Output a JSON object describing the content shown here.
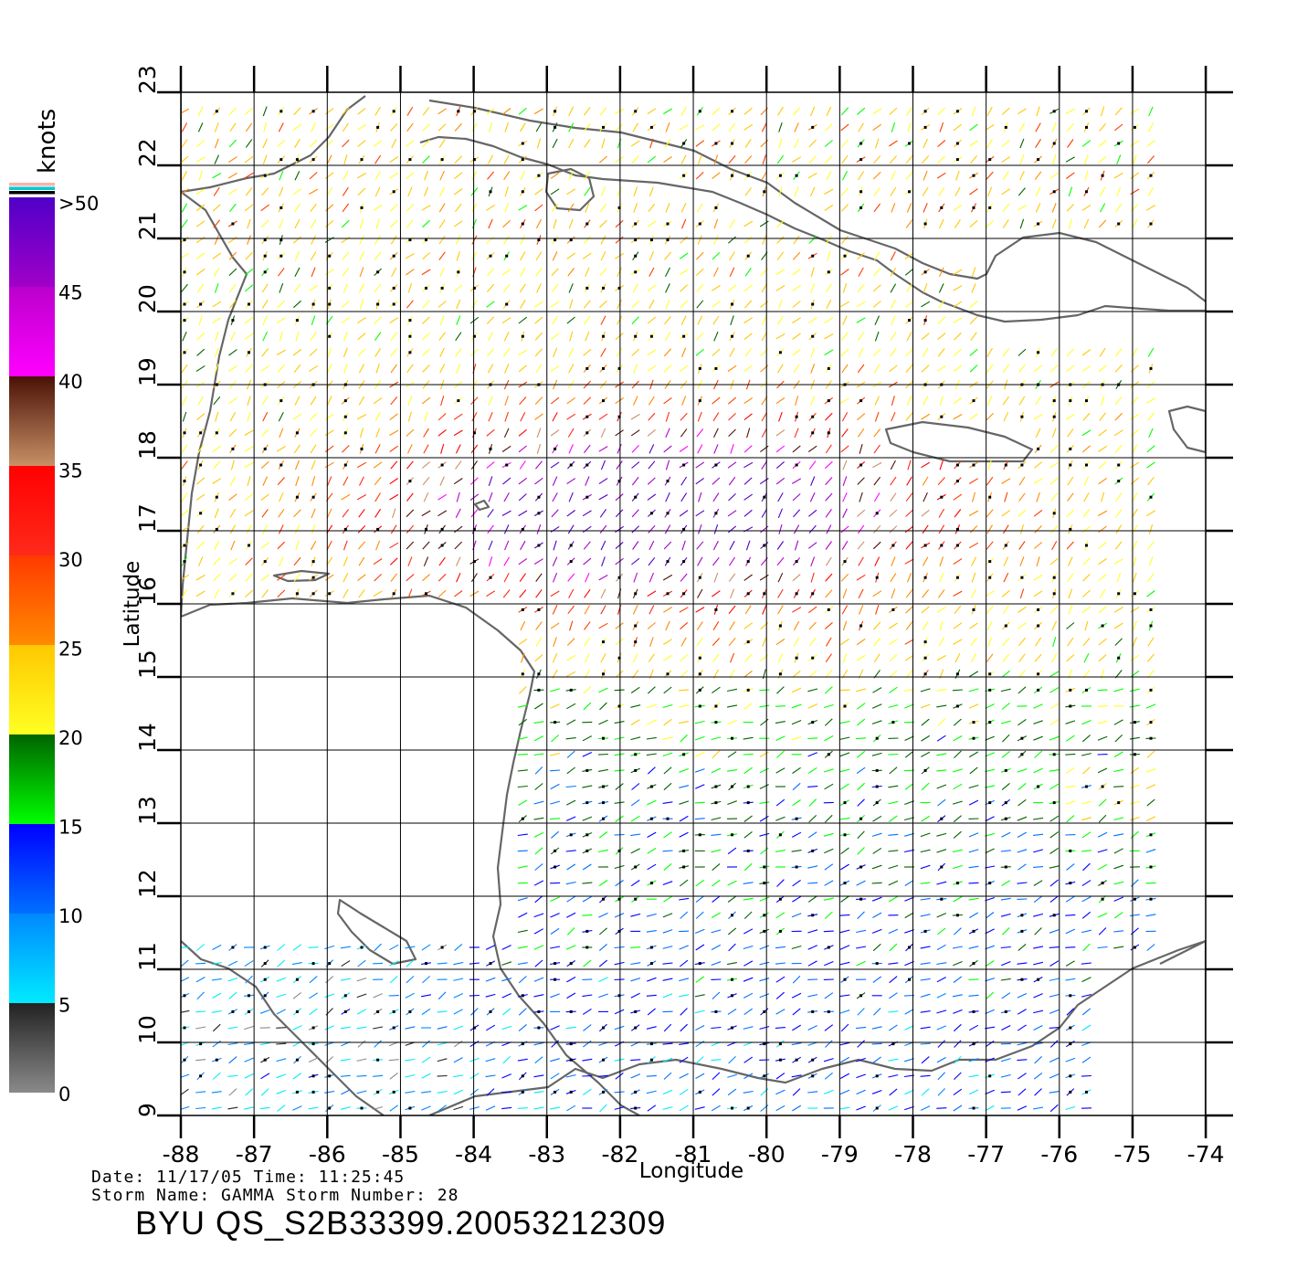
{
  "map": {
    "x_axis_title": "Longitude",
    "y_axis_title": "Latitude",
    "lon_ticks": [
      "-88",
      "-87",
      "-86",
      "-85",
      "-84",
      "-83",
      "-82",
      "-81",
      "-80",
      "-79",
      "-78",
      "-77",
      "-76",
      "-75",
      "-74"
    ],
    "lat_ticks": [
      "9",
      "10",
      "11",
      "12",
      "13",
      "14",
      "15",
      "16",
      "17",
      "18",
      "19",
      "20",
      "21",
      "22",
      "23"
    ],
    "lon_range": [
      -88,
      -74
    ],
    "lat_range": [
      9,
      23
    ],
    "land_color": "#ffffff",
    "coast_color": "#666666",
    "grid_color": "#000000"
  },
  "legend": {
    "unit": "knots",
    "labels": [
      ">50",
      "45",
      "40",
      "35",
      "30",
      "25",
      "20",
      "15",
      "10",
      "5",
      "0"
    ],
    "bands": [
      {
        "range": [
          0,
          5
        ],
        "colors": [
          "#8a8a8a",
          "#222222"
        ]
      },
      {
        "range": [
          5,
          10
        ],
        "colors": [
          "#00eaff",
          "#0088ff"
        ]
      },
      {
        "range": [
          10,
          15
        ],
        "colors": [
          "#0070ff",
          "#0000ff"
        ]
      },
      {
        "range": [
          15,
          20
        ],
        "colors": [
          "#00ff00",
          "#006400"
        ]
      },
      {
        "range": [
          20,
          25
        ],
        "colors": [
          "#ffff22",
          "#ffc800"
        ]
      },
      {
        "range": [
          25,
          30
        ],
        "colors": [
          "#ff8a00",
          "#ff3a00"
        ]
      },
      {
        "range": [
          30,
          35
        ],
        "colors": [
          "#ff2a1a",
          "#ff0000"
        ]
      },
      {
        "range": [
          35,
          40
        ],
        "colors": [
          "#c89066",
          "#4a1206"
        ]
      },
      {
        "range": [
          40,
          45
        ],
        "colors": [
          "#ff00ff",
          "#bb00cc"
        ]
      },
      {
        "range": [
          45,
          50
        ],
        "colors": [
          "#a000c8",
          "#5000c8"
        ]
      }
    ],
    "top_stripes": [
      "#ffb0b0",
      "#00cccc",
      "#000000"
    ]
  },
  "info": {
    "line1": "Date: 11/17/05   Time: 11:25:45",
    "line2": "Storm Name: GAMMA   Storm Number: 28"
  },
  "caption": "BYU QS_S2B33399.20053212309"
}
